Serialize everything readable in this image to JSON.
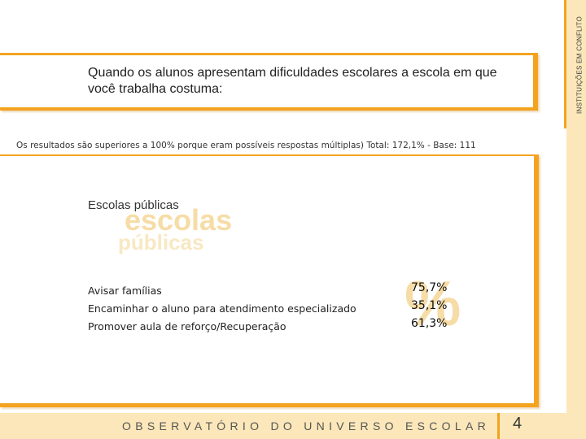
{
  "side_label": "INSTITUIÇÕES EM CONFLITO",
  "header": {
    "title": "Quando os alunos apresentam dificuldades escolares a escola em que você trabalha costuma:"
  },
  "subtitle": "Os resultados são superiores a 100% porque eram possíveis respostas múltiplas) Total: 172,1% - Base: 111",
  "section": {
    "title": "Escolas públicas",
    "watermark_line1": "escolas",
    "watermark_line2": "públicas",
    "watermark_symbol": "%"
  },
  "results": [
    {
      "label": "Avisar famílias",
      "value": "75,7%"
    },
    {
      "label": "Encaminhar o aluno para atendimento especializado",
      "value": "35,1%"
    },
    {
      "label": "Promover aula de reforço/Recuperação",
      "value": "61,3%"
    }
  ],
  "footer": {
    "brand": "OBSERVATÓRIO DO UNIVERSO ESCOLAR",
    "page_number": "4"
  },
  "colors": {
    "accent": "#f4a31f",
    "band": "#fbe7b9",
    "watermark": "#f6dca6"
  }
}
